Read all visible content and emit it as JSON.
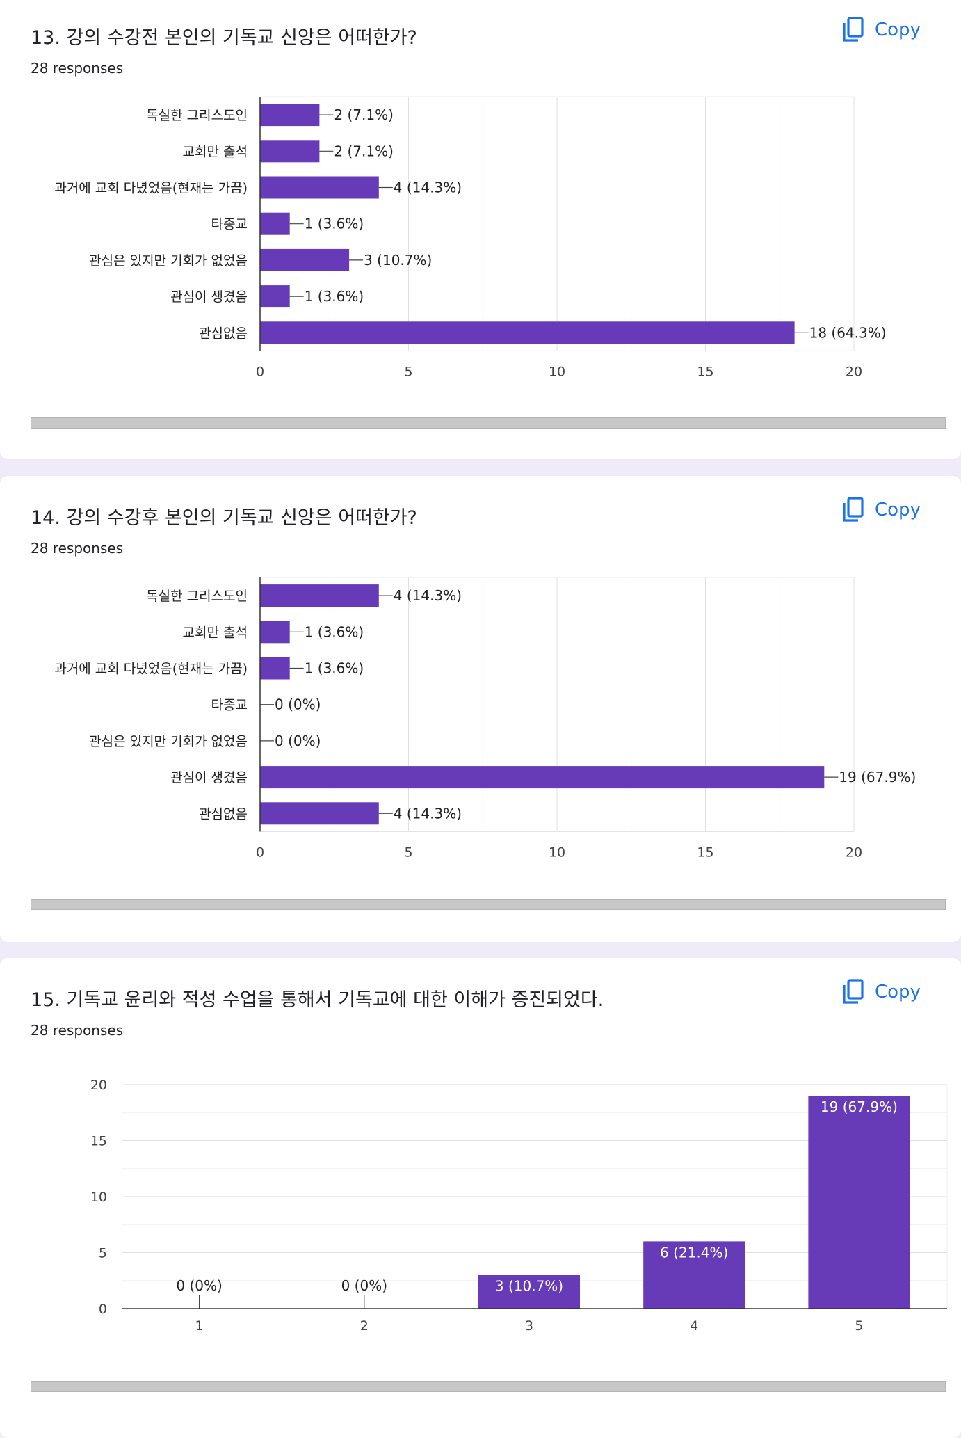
{
  "copy_label": "Copy",
  "accent": "#673ab7",
  "link_color": "#1a73e8",
  "cards": [
    {
      "title": "13. 강의 수강전 본인의 기독교 신앙은 어떠한가?",
      "responses": "28 responses"
    },
    {
      "title": "14. 강의 수강후 본인의 기독교 신앙은 어떠한가?",
      "responses": "28 responses"
    },
    {
      "title": "15. 기독교 윤리와 적성 수업을 통해서 기독교에 대한 이해가 증진되었다.",
      "responses": "28 responses"
    }
  ],
  "chart_data": [
    {
      "type": "bar",
      "orientation": "horizontal",
      "categories": [
        "독실한 그리스도인",
        "교회만 출석",
        "과거에 교회 다녔었음(현재는 가끔)",
        "타종교",
        "관심은 있지만 기회가 없었음",
        "관심이 생겼음",
        "관심없음"
      ],
      "values": [
        2,
        2,
        4,
        1,
        3,
        1,
        18
      ],
      "labels": [
        "2 (7.1%)",
        "2 (7.1%)",
        "4 (14.3%)",
        "1 (3.6%)",
        "3 (10.7%)",
        "1 (3.6%)",
        "18 (64.3%)"
      ],
      "xlim": [
        0,
        20
      ],
      "xticks": [
        0,
        5,
        10,
        15,
        20
      ],
      "grid": true,
      "color": "#673ab7"
    },
    {
      "type": "bar",
      "orientation": "horizontal",
      "categories": [
        "독실한 그리스도인",
        "교회만 출석",
        "과거에 교회 다녔었음(현재는 가끔)",
        "타종교",
        "관심은 있지만 기회가 없었음",
        "관심이 생겼음",
        "관심없음"
      ],
      "values": [
        4,
        1,
        1,
        0,
        0,
        19,
        4
      ],
      "labels": [
        "4 (14.3%)",
        "1 (3.6%)",
        "1 (3.6%)",
        "0 (0%)",
        "0 (0%)",
        "19 (67.9%)",
        "4 (14.3%)"
      ],
      "xlim": [
        0,
        20
      ],
      "xticks": [
        0,
        5,
        10,
        15,
        20
      ],
      "grid": true,
      "color": "#673ab7"
    },
    {
      "type": "bar",
      "orientation": "vertical",
      "categories": [
        "1",
        "2",
        "3",
        "4",
        "5"
      ],
      "values": [
        0,
        0,
        3,
        6,
        19
      ],
      "labels": [
        "0 (0%)",
        "0 (0%)",
        "3 (10.7%)",
        "6 (21.4%)",
        "19 (67.9%)"
      ],
      "ylim": [
        0,
        20
      ],
      "yticks": [
        0,
        5,
        10,
        15,
        20
      ],
      "grid": true,
      "color": "#673ab7"
    }
  ]
}
